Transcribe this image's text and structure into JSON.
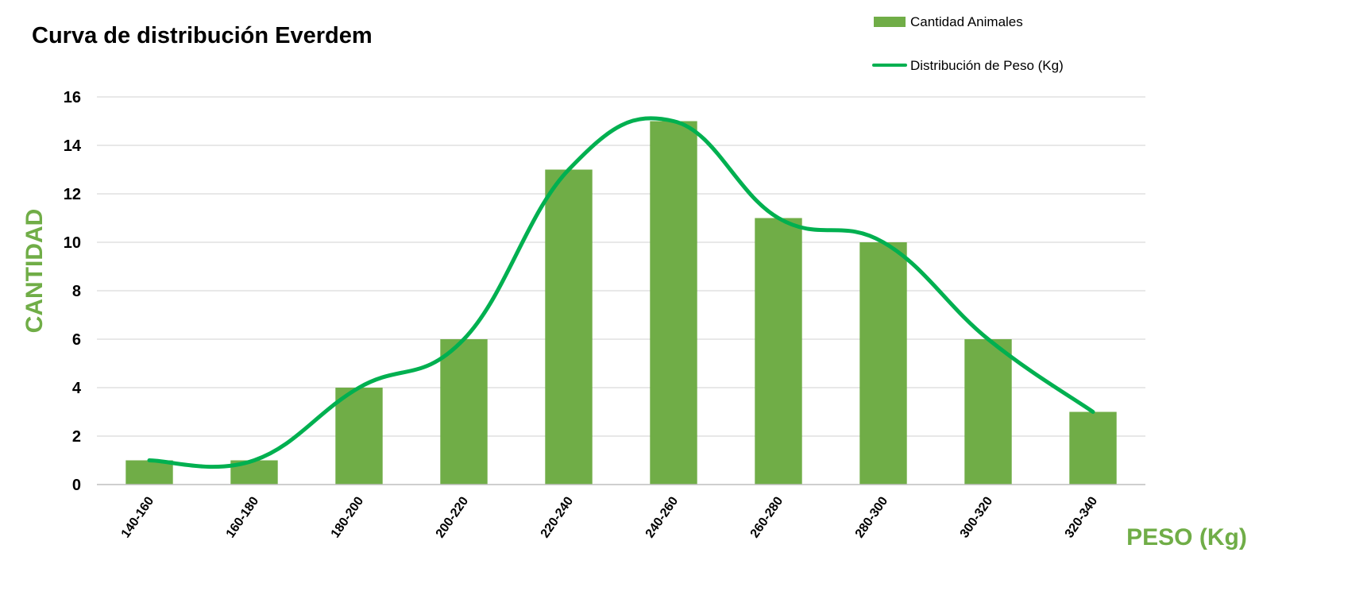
{
  "chart_data": {
    "type": "bar",
    "title": "Curva de distribución Everdem",
    "xlabel": "PESO (Kg)",
    "ylabel": "CANTIDAD",
    "categories": [
      "140-160",
      "160-180",
      "180-200",
      "200-220",
      "220-240",
      "240-260",
      "260-280",
      "280-300",
      "300-320",
      "320-340"
    ],
    "series": [
      {
        "name": "Cantidad Animales",
        "type": "bar",
        "values": [
          1,
          1,
          4,
          6,
          13,
          15,
          11,
          10,
          6,
          3
        ],
        "color": "#70ad47"
      },
      {
        "name": "Distribución de Peso (Kg)",
        "type": "line",
        "smooth": true,
        "values": [
          1,
          1,
          4,
          6,
          13,
          15,
          11,
          10,
          6,
          3
        ],
        "color": "#00b050"
      }
    ],
    "ylim": [
      0,
      16
    ],
    "yticks": [
      0,
      2,
      4,
      6,
      8,
      10,
      12,
      14,
      16
    ],
    "grid": true,
    "legend_position": "top-right",
    "axis_label_color": "#70ad47"
  }
}
